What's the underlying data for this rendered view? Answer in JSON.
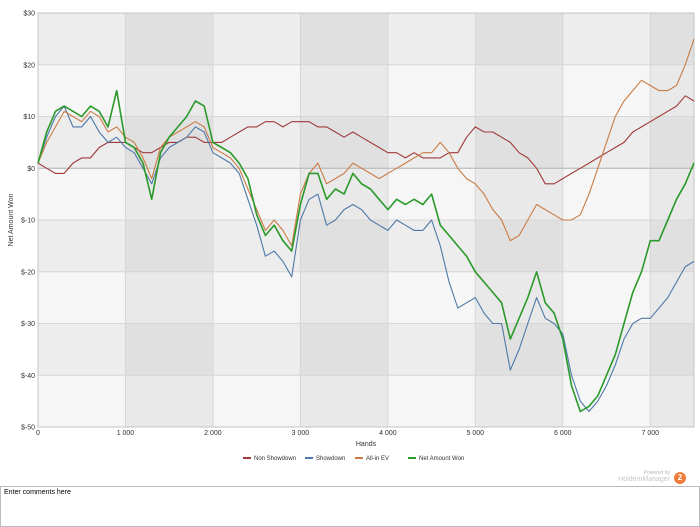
{
  "chart_data": {
    "type": "line",
    "xlabel": "Hands",
    "ylabel": "Net Amount Won",
    "xlim": [
      0,
      7500
    ],
    "ylim": [
      -50,
      30
    ],
    "xticks": [
      0,
      1000,
      2000,
      3000,
      4000,
      5000,
      6000,
      7000
    ],
    "xtick_labels": [
      "0",
      "1 000",
      "2 000",
      "3 000",
      "4 000",
      "5 000",
      "6 000",
      "7 000"
    ],
    "yticks": [
      30,
      20,
      10,
      0,
      -10,
      -20,
      -30,
      -40,
      -50
    ],
    "ytick_labels": [
      "$30",
      "$20",
      "$10",
      "$0",
      "$-10",
      "$-20",
      "$-30",
      "$-40",
      "$-50"
    ],
    "grid": true,
    "legend_position": "bottom-center",
    "x": [
      0,
      100,
      200,
      300,
      400,
      500,
      600,
      700,
      800,
      900,
      1000,
      1100,
      1200,
      1300,
      1400,
      1500,
      1600,
      1700,
      1800,
      1900,
      2000,
      2100,
      2200,
      2300,
      2400,
      2500,
      2600,
      2700,
      2800,
      2900,
      3000,
      3100,
      3200,
      3300,
      3400,
      3500,
      3600,
      3700,
      3800,
      3900,
      4000,
      4100,
      4200,
      4300,
      4400,
      4500,
      4600,
      4700,
      4800,
      4900,
      5000,
      5100,
      5200,
      5300,
      5400,
      5500,
      5600,
      5700,
      5800,
      5900,
      6000,
      6100,
      6200,
      6300,
      6400,
      6500,
      6600,
      6700,
      6800,
      6900,
      7000,
      7100,
      7200,
      7300,
      7400,
      7500
    ],
    "series": [
      {
        "name": "Non Showdown",
        "color": "#a03a3a",
        "values": [
          1,
          0,
          -1,
          -1,
          1,
          2,
          2,
          4,
          5,
          5,
          5,
          4,
          3,
          3,
          4,
          5,
          5,
          6,
          6,
          5,
          5,
          5,
          6,
          7,
          8,
          8,
          9,
          9,
          8,
          9,
          9,
          9,
          8,
          8,
          7,
          6,
          7,
          6,
          5,
          4,
          3,
          3,
          2,
          3,
          2,
          2,
          2,
          3,
          3,
          6,
          8,
          7,
          7,
          6,
          5,
          3,
          2,
          0,
          -3,
          -3,
          -2,
          -1,
          0,
          1,
          2,
          3,
          4,
          5,
          7,
          8,
          9,
          10,
          11,
          12,
          14,
          13
        ]
      },
      {
        "name": "Showdown",
        "color": "#4f79a8",
        "values": [
          1,
          6,
          10,
          12,
          8,
          8,
          10,
          7,
          5,
          6,
          4,
          3,
          0,
          -3,
          2,
          4,
          5,
          6,
          8,
          7,
          3,
          2,
          1,
          -1,
          -6,
          -11,
          -17,
          -16,
          -18,
          -21,
          -10,
          -6,
          -5,
          -11,
          -10,
          -8,
          -7,
          -8,
          -10,
          -11,
          -12,
          -10,
          -11,
          -12,
          -12,
          -10,
          -15,
          -22,
          -27,
          -26,
          -25,
          -28,
          -30,
          -30,
          -39,
          -35,
          -30,
          -25,
          -29,
          -30,
          -32,
          -40,
          -45,
          -47,
          -45,
          -42,
          -38,
          -33,
          -30,
          -29,
          -29,
          -27,
          -25,
          -22,
          -19,
          -18
        ]
      },
      {
        "name": "All-in EV",
        "color": "#c97c45",
        "values": [
          1,
          5,
          8,
          11,
          10,
          9,
          11,
          10,
          7,
          8,
          6,
          5,
          2,
          -2,
          4,
          6,
          7,
          8,
          9,
          8,
          4,
          3,
          2,
          0,
          -4,
          -8,
          -12,
          -10,
          -12,
          -15,
          -5,
          -1,
          1,
          -3,
          -2,
          -1,
          1,
          0,
          -1,
          -2,
          -1,
          0,
          1,
          2,
          3,
          3,
          5,
          3,
          0,
          -2,
          -3,
          -5,
          -8,
          -10,
          -14,
          -13,
          -10,
          -7,
          -8,
          -9,
          -10,
          -10,
          -9,
          -5,
          0,
          5,
          10,
          13,
          15,
          17,
          16,
          15,
          15,
          16,
          20,
          25
        ]
      },
      {
        "name": "Net Amount Won",
        "color": "#2a9a2a",
        "values": [
          1,
          7,
          11,
          12,
          11,
          10,
          12,
          11,
          8,
          15,
          5,
          4,
          1,
          -6,
          3,
          6,
          8,
          10,
          13,
          12,
          5,
          4,
          3,
          1,
          -2,
          -9,
          -13,
          -11,
          -14,
          -16,
          -7,
          -1,
          -1,
          -6,
          -4,
          -5,
          -1,
          -3,
          -4,
          -6,
          -8,
          -6,
          -7,
          -6,
          -7,
          -5,
          -11,
          -13,
          -15,
          -17,
          -20,
          -22,
          -24,
          -26,
          -33,
          -29,
          -25,
          -20,
          -26,
          -28,
          -33,
          -42,
          -47,
          -46,
          -44,
          -40,
          -36,
          -30,
          -24,
          -20,
          -14,
          -14,
          -10,
          -6,
          -3,
          1
        ]
      }
    ]
  },
  "watermark": {
    "powered_by": "Powered by",
    "brand": "HoldemManager",
    "logo_text": "2"
  },
  "comments": {
    "text": "Enter comments here"
  }
}
